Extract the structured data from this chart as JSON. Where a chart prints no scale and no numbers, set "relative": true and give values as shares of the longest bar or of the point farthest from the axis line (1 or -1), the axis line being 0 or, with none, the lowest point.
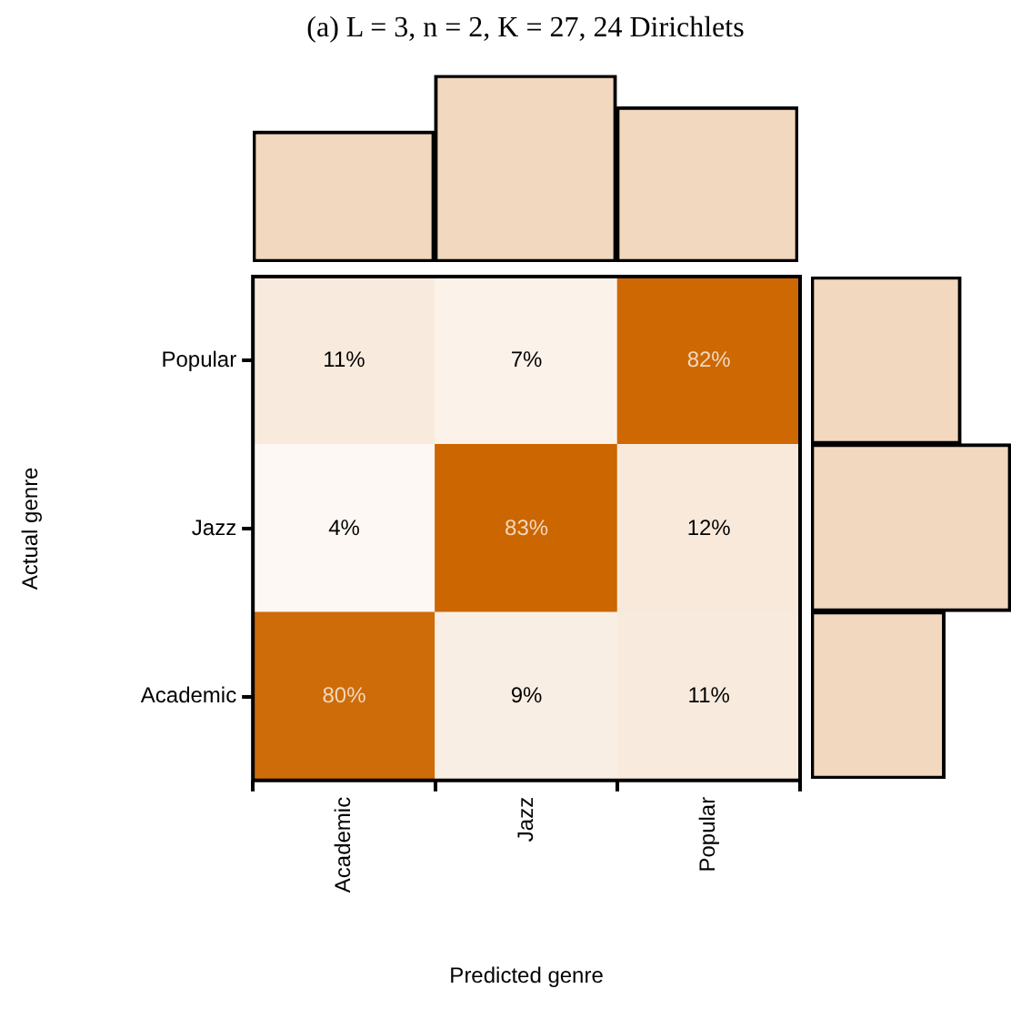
{
  "chart_data": [
    {
      "type": "heatmap",
      "xlabel": "Predicted genre",
      "ylabel": "Actual genre",
      "categories": [
        "Academic",
        "Jazz",
        "Popular"
      ],
      "y_categories": [
        "Popular",
        "Jazz",
        "Academic"
      ],
      "color": "#cc6600",
      "cells": [
        [
          11,
          7,
          82
        ],
        [
          4,
          83,
          12
        ],
        [
          80,
          9,
          11
        ]
      ],
      "cell_labels": [
        [
          "11%",
          "7%",
          "82%"
        ],
        [
          "4%",
          "83%",
          "12%"
        ],
        [
          "80%",
          "9%",
          "11%"
        ]
      ]
    },
    {
      "type": "bar",
      "title": "(a) L = 3, n = 2, K = 27, 24 Dirichlets",
      "relative": true,
      "categories": [
        null,
        null,
        null
      ],
      "values": [
        0.7,
        1,
        0.83
      ],
      "color": "#f2d8bf"
    },
    {
      "type": "bar",
      "orientation": "horizontal",
      "relative": true,
      "categories": [
        null,
        null,
        null
      ],
      "values": [
        0.75,
        1,
        0.67
      ],
      "color": "#f2d8bf"
    }
  ]
}
